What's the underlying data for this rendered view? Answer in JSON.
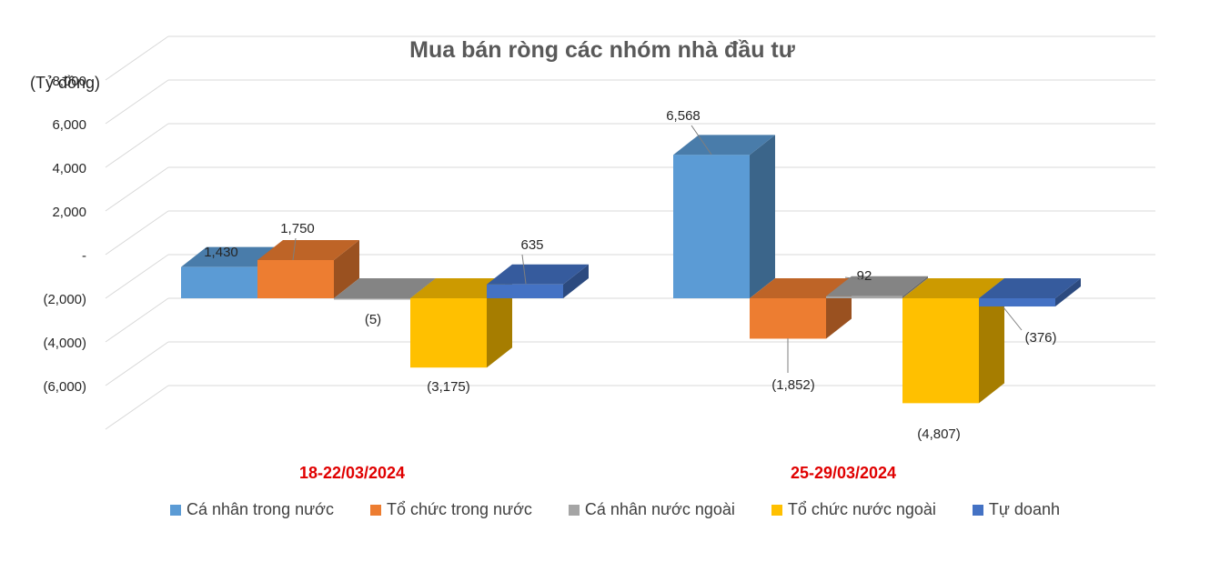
{
  "chart_data": {
    "type": "bar",
    "title": "Mua bán ròng các nhóm nhà đầu tư",
    "ylabel": "(Tỷ đồng)",
    "ylim": [
      -6000,
      8000
    ],
    "yticks": [
      -6000,
      -4000,
      -2000,
      0,
      2000,
      4000,
      6000,
      8000
    ],
    "ytick_labels": [
      "(6,000)",
      "(4,000)",
      "(2,000)",
      "-",
      "2,000",
      "4,000",
      "6,000",
      "8,000"
    ],
    "categories": [
      "18-22/03/2024",
      "25-29/03/2024"
    ],
    "series": [
      {
        "name": "Cá nhân trong nước",
        "color": "#5b9bd5",
        "values": [
          1430,
          6568
        ],
        "labels": [
          "1,430",
          "6,568"
        ]
      },
      {
        "name": "Tổ chức trong nước",
        "color": "#ed7d31",
        "values": [
          1750,
          -1852
        ],
        "labels": [
          "1,750",
          "(1,852)"
        ]
      },
      {
        "name": "Cá nhân nước ngoài",
        "color": "#a5a5a5",
        "values": [
          -5,
          92
        ],
        "labels": [
          "(5)",
          "92"
        ]
      },
      {
        "name": "Tổ chức nước ngoài",
        "color": "#ffc000",
        "values": [
          -3175,
          -4807
        ],
        "labels": [
          "(3,175)",
          "(4,807)"
        ]
      },
      {
        "name": "Tự doanh",
        "color": "#4472c4",
        "values": [
          635,
          -376
        ],
        "labels": [
          "635",
          "(376)"
        ]
      }
    ],
    "grid": true,
    "legend": "bottom"
  }
}
